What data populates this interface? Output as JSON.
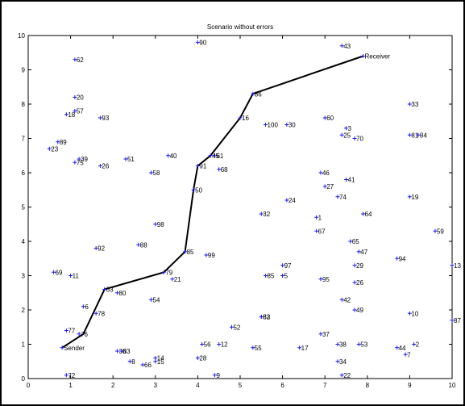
{
  "chart_data": {
    "type": "scatter",
    "title": "Scenario without errors",
    "xlim": [
      0,
      10
    ],
    "ylim": [
      0,
      10
    ],
    "xticks": [
      "0",
      "1",
      "2",
      "3",
      "4",
      "5",
      "6",
      "7",
      "8",
      "9",
      "10"
    ],
    "yticks": [
      "0",
      "1",
      "2",
      "3",
      "4",
      "5",
      "6",
      "7",
      "8",
      "9",
      "10"
    ],
    "grid": false,
    "point_color": "#1a1aff",
    "path_color": "#000000",
    "series": [
      {
        "points": [
          {
            "label": "90",
            "x": 4.0,
            "y": 9.8
          },
          {
            "label": "43",
            "x": 7.4,
            "y": 9.7
          },
          {
            "label": "62",
            "x": 1.1,
            "y": 9.3
          },
          {
            "label": "Receiver",
            "x": 7.9,
            "y": 9.4
          },
          {
            "label": "20",
            "x": 1.1,
            "y": 8.2
          },
          {
            "label": "86",
            "x": 5.3,
            "y": 8.3
          },
          {
            "label": "33",
            "x": 9.0,
            "y": 8.0
          },
          {
            "label": "18",
            "x": 0.9,
            "y": 7.7
          },
          {
            "label": "57",
            "x": 1.1,
            "y": 7.8
          },
          {
            "label": "93",
            "x": 1.7,
            "y": 7.6
          },
          {
            "label": "16",
            "x": 5.0,
            "y": 7.6
          },
          {
            "label": "100",
            "x": 5.6,
            "y": 7.4
          },
          {
            "label": "30",
            "x": 6.1,
            "y": 7.4
          },
          {
            "label": "60",
            "x": 7.0,
            "y": 7.6
          },
          {
            "label": "3",
            "x": 7.5,
            "y": 7.3
          },
          {
            "label": "25",
            "x": 7.4,
            "y": 7.1
          },
          {
            "label": "70",
            "x": 7.7,
            "y": 7.0
          },
          {
            "label": "81",
            "x": 9.0,
            "y": 7.1
          },
          {
            "label": "84",
            "x": 9.2,
            "y": 7.1
          },
          {
            "label": "89",
            "x": 0.7,
            "y": 6.9
          },
          {
            "label": "23",
            "x": 0.5,
            "y": 6.7
          },
          {
            "label": "39",
            "x": 1.2,
            "y": 6.4
          },
          {
            "label": "75",
            "x": 1.1,
            "y": 6.3
          },
          {
            "label": "26",
            "x": 1.7,
            "y": 6.2
          },
          {
            "label": "51",
            "x": 2.3,
            "y": 6.4
          },
          {
            "label": "40",
            "x": 3.3,
            "y": 6.5
          },
          {
            "label": "58",
            "x": 2.9,
            "y": 6.0
          },
          {
            "label": "61",
            "x": 4.4,
            "y": 6.5
          },
          {
            "label": "45",
            "x": 4.3,
            "y": 6.5
          },
          {
            "label": "91",
            "x": 4.0,
            "y": 6.2
          },
          {
            "label": "68",
            "x": 4.5,
            "y": 6.1
          },
          {
            "label": "46",
            "x": 6.9,
            "y": 6.0
          },
          {
            "label": "41",
            "x": 7.5,
            "y": 5.8
          },
          {
            "label": "27",
            "x": 7.0,
            "y": 5.6
          },
          {
            "label": "74",
            "x": 7.3,
            "y": 5.3
          },
          {
            "label": "19",
            "x": 9.0,
            "y": 5.3
          },
          {
            "label": "50",
            "x": 3.9,
            "y": 5.5
          },
          {
            "label": "24",
            "x": 6.1,
            "y": 5.2
          },
          {
            "label": "32",
            "x": 5.5,
            "y": 4.8
          },
          {
            "label": "1",
            "x": 6.8,
            "y": 4.7
          },
          {
            "label": "64",
            "x": 7.9,
            "y": 4.8
          },
          {
            "label": "98",
            "x": 3.0,
            "y": 4.5
          },
          {
            "label": "67",
            "x": 6.8,
            "y": 4.3
          },
          {
            "label": "59",
            "x": 9.6,
            "y": 4.3
          },
          {
            "label": "88",
            "x": 2.6,
            "y": 3.9
          },
          {
            "label": "65",
            "x": 7.6,
            "y": 4.0
          },
          {
            "label": "92",
            "x": 1.6,
            "y": 3.8
          },
          {
            "label": "85",
            "x": 3.7,
            "y": 3.7
          },
          {
            "label": "99",
            "x": 4.2,
            "y": 3.6
          },
          {
            "label": "47",
            "x": 7.8,
            "y": 3.7
          },
          {
            "label": "94",
            "x": 8.7,
            "y": 3.5
          },
          {
            "label": "29",
            "x": 7.7,
            "y": 3.3
          },
          {
            "label": "13",
            "x": 10.0,
            "y": 3.3
          },
          {
            "label": "69",
            "x": 0.6,
            "y": 3.1
          },
          {
            "label": "11",
            "x": 1.0,
            "y": 3.0
          },
          {
            "label": "79",
            "x": 3.2,
            "y": 3.1
          },
          {
            "label": "21",
            "x": 3.4,
            "y": 2.9
          },
          {
            "label": "97",
            "x": 6.0,
            "y": 3.3
          },
          {
            "label": "85",
            "x": 5.6,
            "y": 3.0
          },
          {
            "label": "5",
            "x": 6.0,
            "y": 3.0
          },
          {
            "label": "95",
            "x": 6.9,
            "y": 2.9
          },
          {
            "label": "26",
            "x": 7.7,
            "y": 2.8
          },
          {
            "label": "63",
            "x": 1.8,
            "y": 2.6
          },
          {
            "label": "80",
            "x": 2.1,
            "y": 2.5
          },
          {
            "label": "54",
            "x": 2.9,
            "y": 2.3
          },
          {
            "label": "42",
            "x": 7.4,
            "y": 2.3
          },
          {
            "label": "6",
            "x": 1.3,
            "y": 2.1
          },
          {
            "label": "78",
            "x": 1.6,
            "y": 1.9
          },
          {
            "label": "49",
            "x": 7.7,
            "y": 2.0
          },
          {
            "label": "10",
            "x": 9.0,
            "y": 1.9
          },
          {
            "label": "82",
            "x": 5.5,
            "y": 1.8
          },
          {
            "label": "83",
            "x": 5.5,
            "y": 1.8
          },
          {
            "label": "87",
            "x": 10.0,
            "y": 1.7
          },
          {
            "label": "52",
            "x": 4.8,
            "y": 1.5
          },
          {
            "label": "77",
            "x": 0.9,
            "y": 1.4
          },
          {
            "label": "76",
            "x": 1.2,
            "y": 1.3
          },
          {
            "label": "37",
            "x": 6.9,
            "y": 1.3
          },
          {
            "label": "56",
            "x": 4.1,
            "y": 1.0
          },
          {
            "label": "12",
            "x": 4.5,
            "y": 1.0
          },
          {
            "label": "55",
            "x": 5.3,
            "y": 0.9
          },
          {
            "label": "17",
            "x": 6.4,
            "y": 0.9
          },
          {
            "label": "38",
            "x": 7.3,
            "y": 1.0
          },
          {
            "label": "53",
            "x": 7.8,
            "y": 1.0
          },
          {
            "label": "2",
            "x": 9.1,
            "y": 1.0
          },
          {
            "label": "44",
            "x": 8.7,
            "y": 0.9
          },
          {
            "label": "7",
            "x": 8.9,
            "y": 0.7
          },
          {
            "label": "Sender",
            "x": 0.8,
            "y": 0.9
          },
          {
            "label": "36",
            "x": 2.1,
            "y": 0.8
          },
          {
            "label": "83",
            "x": 2.2,
            "y": 0.8
          },
          {
            "label": "28",
            "x": 4.0,
            "y": 0.6
          },
          {
            "label": "14",
            "x": 3.0,
            "y": 0.6
          },
          {
            "label": "15",
            "x": 3.0,
            "y": 0.5
          },
          {
            "label": "8",
            "x": 2.4,
            "y": 0.5
          },
          {
            "label": "66",
            "x": 2.7,
            "y": 0.4
          },
          {
            "label": "34",
            "x": 7.3,
            "y": 0.5
          },
          {
            "label": "9",
            "x": 4.4,
            "y": 0.1
          },
          {
            "label": "72",
            "x": 0.9,
            "y": 0.1
          },
          {
            "label": "22",
            "x": 7.4,
            "y": 0.1
          }
        ]
      }
    ],
    "path": [
      {
        "x": 0.8,
        "y": 0.9
      },
      {
        "x": 1.3,
        "y": 1.3
      },
      {
        "x": 1.8,
        "y": 2.6
      },
      {
        "x": 3.2,
        "y": 3.1
      },
      {
        "x": 3.7,
        "y": 3.7
      },
      {
        "x": 3.9,
        "y": 5.5
      },
      {
        "x": 4.0,
        "y": 6.2
      },
      {
        "x": 4.3,
        "y": 6.5
      },
      {
        "x": 5.0,
        "y": 7.6
      },
      {
        "x": 5.3,
        "y": 8.3
      },
      {
        "x": 7.9,
        "y": 9.4
      }
    ]
  }
}
